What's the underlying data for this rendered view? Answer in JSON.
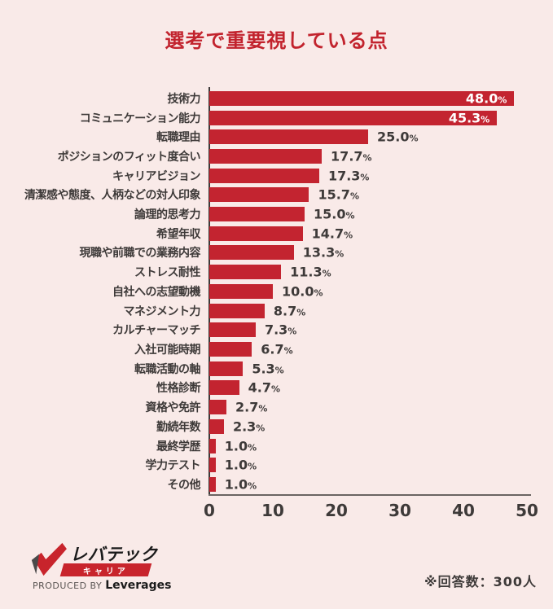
{
  "title": "選考で重要視している点",
  "chart_data": {
    "type": "bar",
    "orientation": "horizontal",
    "title": "選考で重要視している点",
    "categories": [
      "技術力",
      "コミュニケーション能力",
      "転職理由",
      "ポジションのフィット度合い",
      "キャリアビジョン",
      "清潔感や態度、人柄などの対人印象",
      "論理的思考力",
      "希望年収",
      "現職や前職での業務内容",
      "ストレス耐性",
      "自社への志望動機",
      "マネジメント力",
      "カルチャーマッチ",
      "入社可能時期",
      "転職活動の軸",
      "性格診断",
      "資格や免許",
      "勤続年数",
      "最終学歴",
      "学力テスト",
      "その他"
    ],
    "values": [
      48.0,
      45.3,
      25.0,
      17.7,
      17.3,
      15.7,
      15.0,
      14.7,
      13.3,
      11.3,
      10.0,
      8.7,
      7.3,
      6.7,
      5.3,
      4.7,
      2.7,
      2.3,
      1.0,
      1.0,
      1.0
    ],
    "value_labels": [
      "48.0",
      "45.3",
      "25.0",
      "17.7",
      "17.3",
      "15.7",
      "15.0",
      "14.7",
      "13.3",
      "11.3",
      "10.0",
      "8.7",
      "7.3",
      "6.7",
      "5.3",
      "4.7",
      "2.7",
      "2.3",
      "1.0",
      "1.0",
      "1.0"
    ],
    "unit": "%",
    "xlim": [
      0,
      50
    ],
    "x_ticks": [
      "0",
      "10",
      "20",
      "30",
      "40",
      "50"
    ],
    "inside_label_threshold": 40,
    "bar_color": "#c32430",
    "grid": false,
    "legend": "none"
  },
  "footer": {
    "note": "※回答数：300人",
    "logo": {
      "brand": "レバテック",
      "sub": "キャリア",
      "produced_by": "PRODUCED BY",
      "company": "Leverages"
    }
  },
  "colors": {
    "background": "#f9eae8",
    "title": "#c2232d",
    "bar": "#c32430",
    "text": "#3e3a39",
    "value_inside": "#ffffff",
    "axis_y": "#3e3a39",
    "axis_x": "#6b6462",
    "logo_red": "#c8242c"
  }
}
